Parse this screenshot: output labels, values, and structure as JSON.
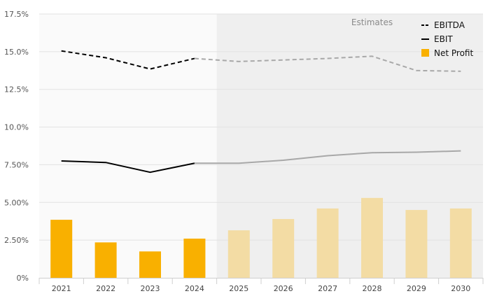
{
  "chart_data": {
    "type": "bar",
    "categories": [
      "2021",
      "2022",
      "2023",
      "2024",
      "2025",
      "2026",
      "2027",
      "2028",
      "2029",
      "2030"
    ],
    "estimate_start_index": 4,
    "annotation": "Estimates",
    "ylim": [
      0,
      17.5
    ],
    "y_ticks": [
      0,
      2.5,
      5,
      7.5,
      10,
      12.5,
      15,
      17.5
    ],
    "y_tick_labels": [
      "0%",
      "2.50%",
      "5.00%",
      "7.50%",
      "10.0%",
      "12.5%",
      "15.0%",
      "17.5%"
    ],
    "series": [
      {
        "name": "EBITDA",
        "kind": "line",
        "style": "dashed",
        "values": [
          15.05,
          14.6,
          13.85,
          14.55,
          14.35,
          14.45,
          14.55,
          14.7,
          13.75,
          13.7
        ]
      },
      {
        "name": "EBIT",
        "kind": "line",
        "style": "solid",
        "values": [
          7.75,
          7.65,
          7.0,
          7.6,
          7.6,
          7.8,
          8.1,
          8.3,
          8.33,
          8.42
        ]
      },
      {
        "name": "Net Profit",
        "kind": "bar",
        "values": [
          3.85,
          2.35,
          1.75,
          2.6,
          3.15,
          3.9,
          4.6,
          5.3,
          4.5,
          4.6
        ]
      }
    ],
    "legend_position": "top-right",
    "colors": {
      "line_actual": "#000000",
      "line_estimate": "#a8a8a8",
      "bar_actual": "#f9b000",
      "bar_estimate": "#f3dca4",
      "estimate_band": "#efefef",
      "actual_band": "#fafafa"
    },
    "grid": true
  }
}
